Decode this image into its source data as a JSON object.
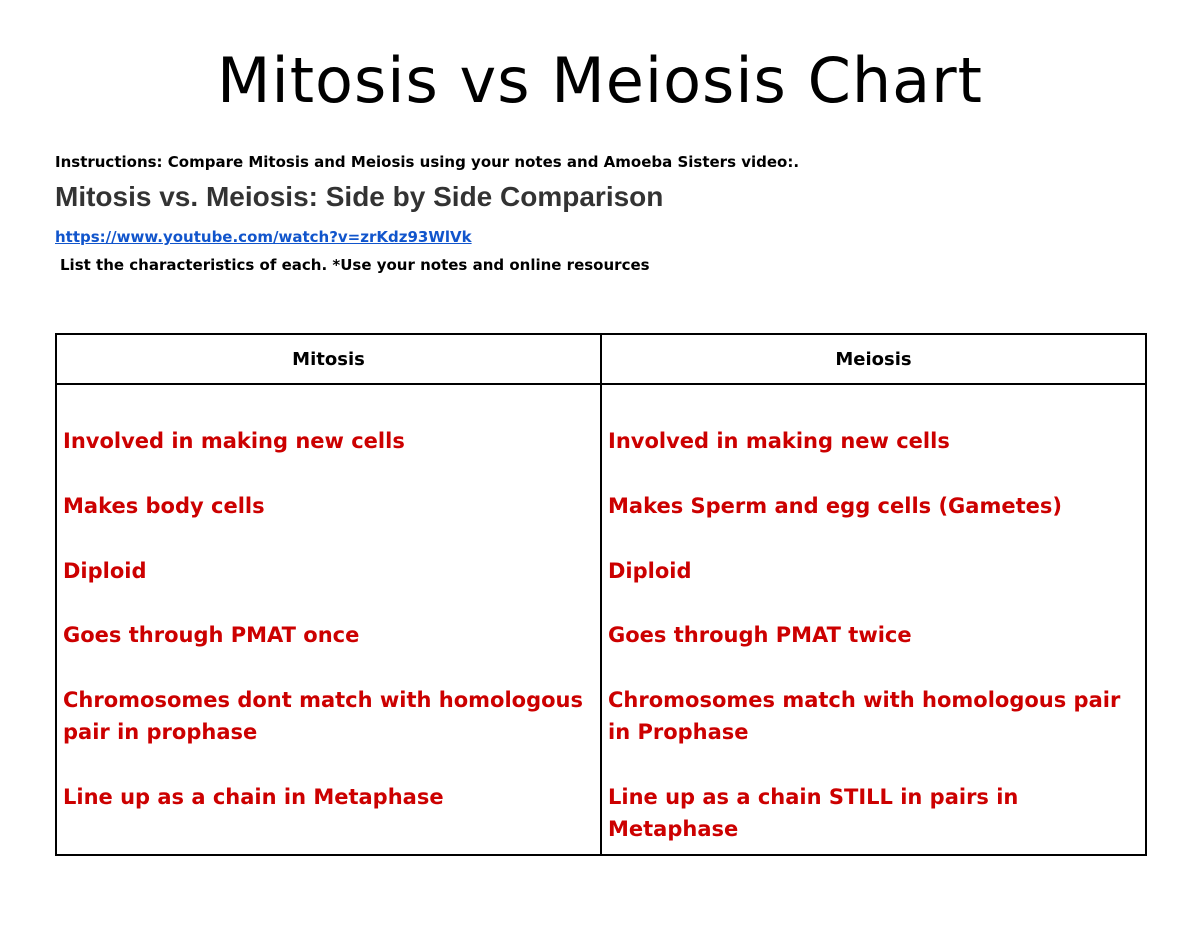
{
  "header": {
    "title": "Mitosis vs Meiosis Chart",
    "instructions": "Instructions: Compare Mitosis and Meiosis using your notes and Amoeba Sisters video:.",
    "subtitle": "Mitosis vs. Meiosis: Side by Side Comparison",
    "link": "https://www.youtube.com/watch?v=zrKdz93WlVk",
    "note": "List the characteristics of each. *Use your notes and online resources"
  },
  "table": {
    "columns": [
      "Mitosis",
      "Meiosis"
    ],
    "rows": [
      [
        "Involved in making new cells",
        "Involved in making new cells"
      ],
      [
        "Makes body cells",
        "Makes Sperm and egg cells (Gametes)"
      ],
      [
        "Diploid",
        "Diploid"
      ],
      [
        "Goes through PMAT once",
        "Goes through PMAT twice"
      ],
      [
        "Chromosomes dont match with homologous pair in prophase",
        "Chromosomes match with homologous pair in Prophase"
      ],
      [
        "Line up as a chain in Metaphase",
        "Line up as a chain STILL in pairs in Metaphase"
      ]
    ]
  }
}
